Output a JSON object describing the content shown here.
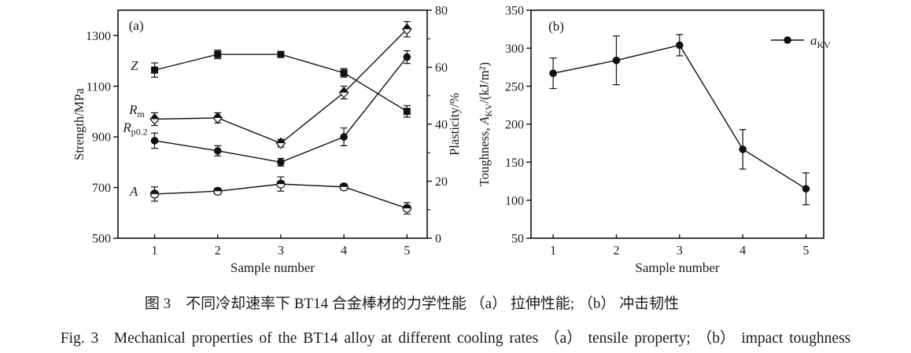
{
  "captions": {
    "zh": "图 3　不同冷却速率下 BT14 合金棒材的力学性能 （a） 拉伸性能; （b） 冲击韧性",
    "en": "Fig. 3　Mechanical properties of the BT14 alloy at different cooling rates （a） tensile property; （b） impact toughness"
  },
  "chart_data": [
    {
      "id": "a",
      "type": "line",
      "panel_label": "(a)",
      "x": [
        1,
        2,
        3,
        4,
        5
      ],
      "xlabel": "Sample number",
      "x_range": [
        0.42,
        5.32
      ],
      "grid": false,
      "axes": {
        "left": {
          "label": "Strength/MPa",
          "range": [
            500,
            1400
          ],
          "ticks": [
            500,
            700,
            900,
            1100,
            1300
          ]
        },
        "right": {
          "label": "Plasticity/%",
          "range": [
            0,
            80
          ],
          "ticks": [
            0,
            20,
            40,
            60,
            80
          ],
          "minor_step": 10
        }
      },
      "series": [
        {
          "name": "Z",
          "label": "*Z*",
          "axis": "right",
          "marker": "square-filled",
          "values": [
            59,
            64.5,
            64.5,
            58,
            44.5
          ],
          "errors": [
            2.5,
            1.5,
            1,
            1.5,
            2
          ]
        },
        {
          "name": "Rm",
          "label": "*R*_{m}",
          "axis": "left",
          "marker": "diamond-half",
          "values": [
            970,
            975,
            875,
            1075,
            1325
          ],
          "errors": [
            25,
            20,
            15,
            25,
            30
          ]
        },
        {
          "name": "Rp0.2",
          "label": "*R*_{p0.2}",
          "axis": "left",
          "marker": "circle-filled",
          "values": [
            885,
            845,
            800,
            900,
            1215
          ],
          "errors": [
            30,
            20,
            15,
            35,
            25
          ]
        },
        {
          "name": "A",
          "label": "*A*",
          "axis": "right",
          "marker": "circle-half",
          "values": [
            15.5,
            16.5,
            19,
            18,
            10.5
          ],
          "errors": [
            2.5,
            1,
            2.5,
            1,
            2
          ]
        }
      ],
      "annotations": [
        {
          "text": "(a)",
          "fx": 0.059,
          "fy": 0.066
        },
        {
          "text": "*Z*",
          "fx": 0.053,
          "fy": 0.241
        },
        {
          "text": "*R*_{m}",
          "fx": 0.061,
          "fy": 0.434
        },
        {
          "text": "*R*_{p0.2}",
          "fx": 0.056,
          "fy": 0.512
        },
        {
          "text": "*A*",
          "fx": 0.051,
          "fy": 0.793
        }
      ]
    },
    {
      "id": "b",
      "type": "line",
      "panel_label": "(b)",
      "x": [
        1,
        2,
        3,
        4,
        5
      ],
      "xlabel": "Sample number",
      "x_range": [
        0.65,
        5.28
      ],
      "grid": false,
      "axes": {
        "left": {
          "label": "Toughness, *A*_{KV}/(kJ/m²)",
          "range": [
            50,
            350
          ],
          "ticks": [
            50,
            100,
            150,
            200,
            250,
            300,
            350
          ]
        }
      },
      "series": [
        {
          "name": "aKV",
          "label": "*a*_{KV}",
          "axis": "left",
          "marker": "circle-filled",
          "values": [
            267,
            284,
            304,
            167,
            115
          ],
          "errors": [
            20,
            32,
            14,
            26,
            21
          ]
        }
      ],
      "annotations": [
        {
          "text": "(b)",
          "fx": 0.086,
          "fy": 0.069
        }
      ],
      "legend": {
        "label": "*a*_{KV}",
        "fx": 0.82,
        "fy": 0.131,
        "position": "top-right"
      }
    }
  ]
}
